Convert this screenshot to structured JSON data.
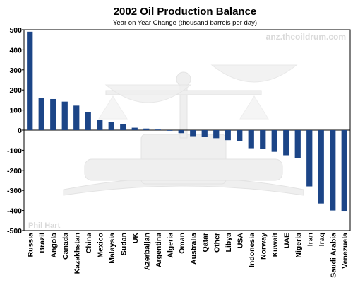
{
  "chart_data": {
    "type": "bar",
    "title": "2002 Oil Production Balance",
    "subtitle": "Year on Year Change (thousand barrels per day)",
    "categories": [
      "Russia",
      "Brazil",
      "Angola",
      "Canada",
      "Kazakhstan",
      "China",
      "Mexico",
      "Malaysia",
      "Sudan",
      "UK",
      "Azerbaijan",
      "Argentina",
      "Algeria",
      "Oman",
      "Australia",
      "Qatar",
      "Other",
      "Libya",
      "USA",
      "Indonesia",
      "Norway",
      "Kuwait",
      "UAE",
      "Nigeria",
      "Iran",
      "Iraq",
      "Saudi Arabia",
      "Venezuela"
    ],
    "values": [
      490,
      160,
      155,
      142,
      122,
      90,
      50,
      40,
      30,
      12,
      8,
      3,
      -3,
      -15,
      -30,
      -35,
      -40,
      -50,
      -55,
      -90,
      -95,
      -108,
      -125,
      -140,
      -280,
      -365,
      -400,
      -405
    ],
    "ylim": [
      -500,
      500
    ],
    "yticks": [
      -500,
      -400,
      -300,
      -200,
      -100,
      0,
      100,
      200,
      300,
      400,
      500
    ],
    "grid": false,
    "legend": "none",
    "bar_color": "#1c4587",
    "watermark_url": "anz.theoildrum.com",
    "watermark_author": "Phil Hart"
  }
}
